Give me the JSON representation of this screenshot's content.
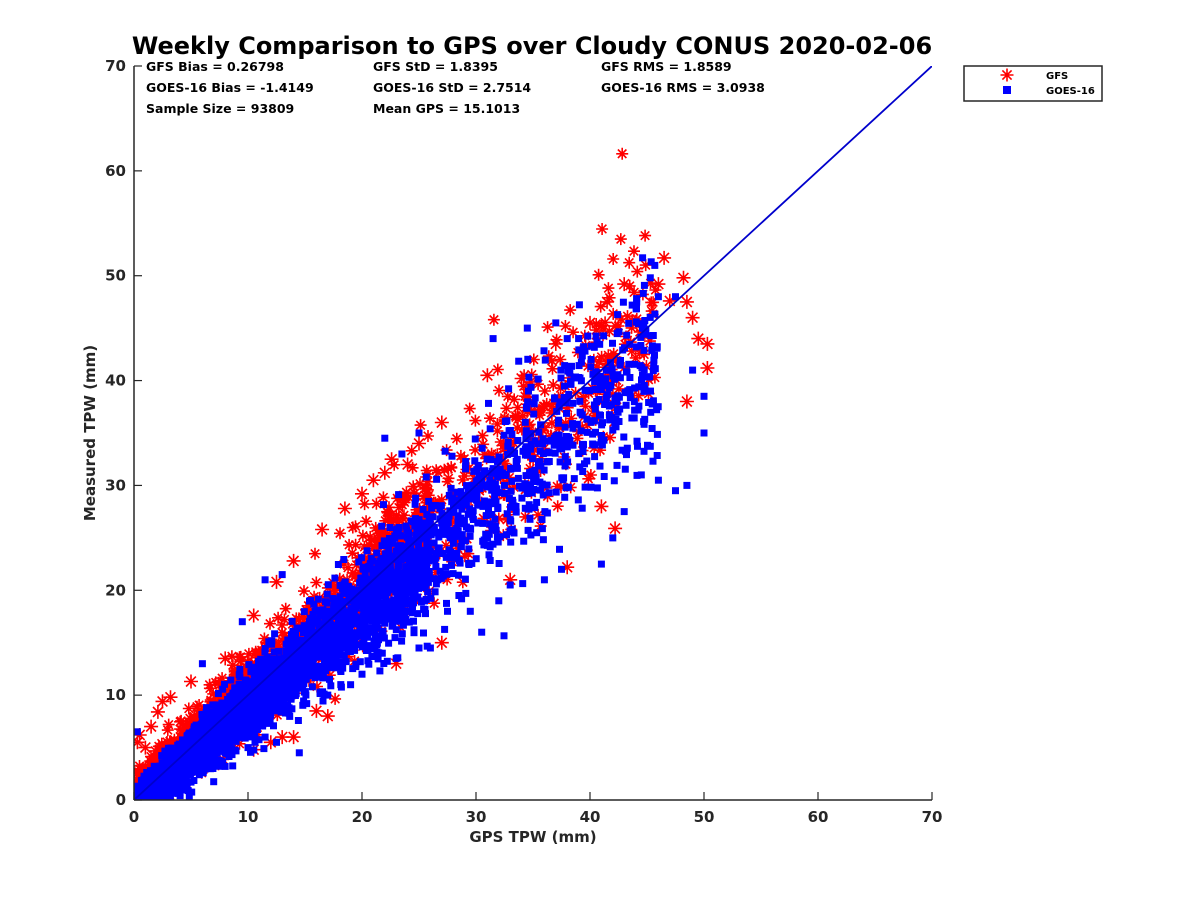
{
  "chart_data": {
    "type": "scatter",
    "title": "Weekly Comparison to GPS over Cloudy CONUS 2020-02-06",
    "xlabel": "GPS TPW (mm)",
    "ylabel": "Measured TPW (mm)",
    "xlim": [
      0,
      70
    ],
    "ylim": [
      0,
      70
    ],
    "xticks": [
      "0",
      "10",
      "20",
      "30",
      "40",
      "50",
      "60",
      "70"
    ],
    "yticks": [
      "0",
      "10",
      "20",
      "30",
      "40",
      "50",
      "60",
      "70"
    ],
    "grid": false,
    "legend_position": "outside-top-right",
    "stats": [
      [
        "GFS Bias = 0.26798",
        "GFS StD = 1.8395",
        "GFS RMS = 1.8589"
      ],
      [
        "GOES-16 Bias = -1.4149",
        "GOES-16 StD = 2.7514",
        "GOES-16 RMS = 3.0938"
      ],
      [
        "Sample Size = 93809",
        "Mean GPS = 15.1013",
        ""
      ]
    ],
    "reference_line": {
      "from": [
        0,
        0
      ],
      "to": [
        70,
        70
      ],
      "color": "#0000cc"
    },
    "series": [
      {
        "name": "GFS",
        "marker": "asterisk",
        "color": "#ff0000",
        "bias": 0.26798,
        "std": 1.8395,
        "points": [
          [
            0.3,
            5.5
          ],
          [
            0.5,
            6.2
          ],
          [
            1.0,
            5.0
          ],
          [
            1.5,
            7.0
          ],
          [
            2.1,
            8.4
          ],
          [
            2.5,
            9.4
          ],
          [
            3.2,
            9.8
          ],
          [
            5.0,
            11.3
          ],
          [
            8.0,
            13.5
          ],
          [
            10.5,
            17.6
          ],
          [
            12.5,
            20.8
          ],
          [
            14.0,
            22.8
          ],
          [
            16.5,
            25.8
          ],
          [
            18.5,
            27.8
          ],
          [
            20.0,
            29.2
          ],
          [
            21.0,
            30.5
          ],
          [
            22.0,
            31.2
          ],
          [
            22.6,
            32.5
          ],
          [
            24.0,
            32.0
          ],
          [
            25.0,
            34.0
          ],
          [
            27.0,
            36.0
          ],
          [
            31.0,
            40.5
          ],
          [
            34.0,
            40.2
          ],
          [
            37.0,
            43.5
          ],
          [
            40.0,
            45.5
          ],
          [
            41.5,
            47.5
          ],
          [
            43.0,
            49.2
          ],
          [
            46.0,
            49.2
          ],
          [
            46.5,
            51.7
          ],
          [
            47.0,
            47.6
          ],
          [
            48.2,
            49.8
          ],
          [
            48.5,
            47.5
          ],
          [
            49.0,
            46.0
          ],
          [
            49.5,
            44.0
          ],
          [
            50.3,
            43.5
          ],
          [
            50.3,
            41.2
          ],
          [
            48.5,
            38.0
          ],
          [
            42.2,
            25.9
          ],
          [
            41.0,
            28.0
          ],
          [
            38.0,
            22.2
          ],
          [
            33.0,
            21.0
          ],
          [
            27.0,
            15.0
          ],
          [
            23.0,
            13.0
          ],
          [
            17.0,
            8.0
          ],
          [
            16.0,
            8.5
          ],
          [
            14.0,
            6.0
          ],
          [
            13.0,
            6.0
          ],
          [
            12.0,
            5.5
          ],
          [
            10.5,
            4.8
          ],
          [
            3.0,
            1.5
          ],
          [
            1.0,
            2.5
          ]
        ]
      },
      {
        "name": "GOES-16",
        "marker": "square",
        "color": "#0000ff",
        "bias": -1.4149,
        "std": 2.7514,
        "points": [
          [
            31.5,
            44.0
          ],
          [
            34.5,
            45.0
          ],
          [
            37.0,
            45.5
          ],
          [
            39.0,
            44.0
          ],
          [
            46.0,
            48.0
          ],
          [
            47.5,
            48.0
          ],
          [
            49.0,
            41.0
          ],
          [
            50.0,
            38.5
          ],
          [
            50.0,
            35.0
          ],
          [
            48.5,
            30.0
          ],
          [
            47.5,
            29.5
          ],
          [
            46.0,
            30.5
          ],
          [
            44.5,
            31.0
          ],
          [
            43.0,
            27.5
          ],
          [
            42.0,
            25.0
          ],
          [
            41.0,
            22.5
          ],
          [
            37.5,
            22.0
          ],
          [
            36.0,
            21.0
          ],
          [
            33.0,
            20.5
          ],
          [
            32.0,
            19.0
          ],
          [
            30.5,
            16.0
          ],
          [
            29.5,
            18.0
          ],
          [
            28.5,
            19.5
          ],
          [
            27.5,
            18.0
          ],
          [
            26.0,
            14.5
          ],
          [
            25.0,
            14.5
          ],
          [
            23.0,
            13.5
          ],
          [
            20.0,
            12.0
          ],
          [
            19.0,
            11.0
          ],
          [
            17.0,
            10.0
          ],
          [
            14.5,
            4.5
          ],
          [
            12.5,
            5.5
          ],
          [
            11.5,
            6.0
          ],
          [
            10.0,
            5.0
          ],
          [
            8.0,
            4.5
          ],
          [
            4.0,
            1.8
          ],
          [
            2.0,
            1.0
          ],
          [
            0.5,
            0.8
          ],
          [
            0.3,
            6.5
          ],
          [
            6.0,
            13.0
          ],
          [
            9.5,
            17.0
          ],
          [
            11.5,
            21.0
          ],
          [
            13.0,
            21.5
          ],
          [
            22.0,
            34.5
          ],
          [
            25.0,
            35.0
          ],
          [
            23.5,
            33.0
          ]
        ]
      }
    ]
  }
}
